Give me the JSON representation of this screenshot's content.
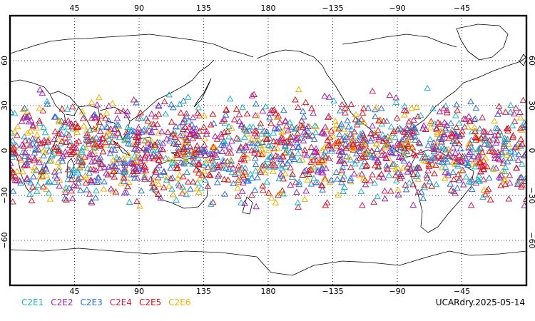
{
  "map": {
    "projection": "cylindrical-equidistant",
    "lon_range": [
      0,
      360
    ],
    "lat_range": [
      -90,
      90
    ],
    "lon_ticks": [
      {
        "lon": 45,
        "label": "45"
      },
      {
        "lon": 90,
        "label": "90"
      },
      {
        "lon": 135,
        "label": "135"
      },
      {
        "lon": 180,
        "label": "180"
      },
      {
        "lon": 225,
        "label": "−135"
      },
      {
        "lon": 270,
        "label": "−90"
      },
      {
        "lon": 315,
        "label": "−45"
      }
    ],
    "lat_ticks": [
      {
        "lat": 60,
        "label": "60"
      },
      {
        "lat": 30,
        "label": "30"
      },
      {
        "lat": 0,
        "label": "0"
      },
      {
        "lat": -30,
        "label": "−30"
      },
      {
        "lat": -60,
        "label": "−60"
      }
    ],
    "grid": "dotted",
    "marker": "triangle-outline",
    "colors": {
      "frame": "#000000",
      "coast": "#000000",
      "grid": "#000000"
    }
  },
  "chart_data": {
    "type": "scatter",
    "series": [
      {
        "name": "C2E1",
        "color": "#1fb3c8",
        "lat_range": [
          -45,
          45
        ]
      },
      {
        "name": "C2E2",
        "color": "#a020c0",
        "lat_range": [
          -45,
          45
        ]
      },
      {
        "name": "C2E3",
        "color": "#2a6fe0",
        "lat_range": [
          -45,
          45
        ]
      },
      {
        "name": "C2E4",
        "color": "#d0204a",
        "lat_range": [
          -45,
          45
        ]
      },
      {
        "name": "C2E5",
        "color": "#e01010",
        "lat_range": [
          -45,
          45
        ]
      },
      {
        "name": "C2E6",
        "color": "#f0b000",
        "lat_range": [
          -45,
          45
        ]
      }
    ],
    "xlim": [
      0,
      360
    ],
    "ylim": [
      -90,
      90
    ]
  },
  "footer": {
    "stamp": "UCARdry.2025-05-14"
  }
}
